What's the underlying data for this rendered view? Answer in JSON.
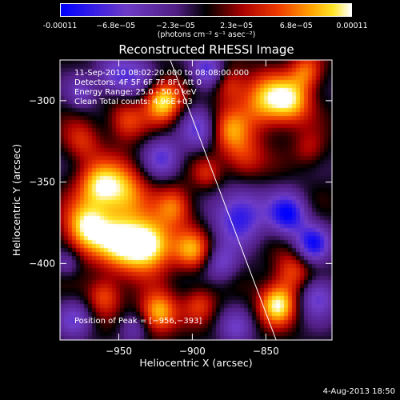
{
  "colorbar": {
    "ticks": [
      "-0.00011",
      "−6.8e−05",
      "−2.3e−05",
      "2.3e−05",
      "6.8e−05",
      "0.00011"
    ],
    "tick_values": [
      -0.00011,
      -6.8e-05,
      -2.3e-05,
      2.3e-05,
      6.8e-05,
      0.00011
    ],
    "range": [
      -0.00011,
      0.00011
    ],
    "units": "(photons cm⁻² s⁻¹ asec⁻²)"
  },
  "info": {
    "time": "11-Sep-2010 08:02:20.000 to 08:08:00.000",
    "detectors": "Detectors: 4F 5F 6F 7F 8F, Att 0",
    "energy": "Energy Range: 25.0 - 50.0 keV",
    "clean": "Clean     Total counts: 4.96E+03"
  },
  "peak": "Position of Peak = [−956,−393]",
  "footer": {
    "date": "4-Aug-2013 18:50"
  },
  "chart_data": {
    "type": "heatmap",
    "title": "Reconstructed RHESSI Image",
    "xlabel": "Heliocentric X (arcsec)",
    "ylabel": "Heliocentric Y (arcsec)",
    "xlim": [
      -990,
      -805
    ],
    "ylim": [
      -447,
      -275
    ],
    "xticks": [
      -950,
      -900,
      -850
    ],
    "yticks": [
      -300,
      -350,
      -400
    ],
    "colormap": "red-temperature (blue–purple–black–red–orange–yellow–white)",
    "limb_line": [
      [
        -915,
        -275
      ],
      [
        -843,
        -447
      ]
    ],
    "blobs": [
      {
        "x": -972,
        "y": -378,
        "amp": 1.0,
        "r": 11
      },
      {
        "x": -947,
        "y": -388,
        "amp": 0.95,
        "r": 13
      },
      {
        "x": -928,
        "y": -388,
        "amp": 0.95,
        "r": 11
      },
      {
        "x": -948,
        "y": -355,
        "amp": 0.8,
        "r": 12
      },
      {
        "x": -965,
        "y": -352,
        "amp": 0.7,
        "r": 10
      },
      {
        "x": -920,
        "y": -300,
        "amp": 1.0,
        "r": 9
      },
      {
        "x": -945,
        "y": -312,
        "amp": 0.55,
        "r": 9
      },
      {
        "x": -912,
        "y": -365,
        "amp": 0.65,
        "r": 9
      },
      {
        "x": -900,
        "y": -392,
        "amp": 0.7,
        "r": 9
      },
      {
        "x": -923,
        "y": -430,
        "amp": 0.9,
        "r": 9
      },
      {
        "x": -850,
        "y": -300,
        "amp": 0.8,
        "r": 12
      },
      {
        "x": -832,
        "y": -300,
        "amp": 0.75,
        "r": 10
      },
      {
        "x": -822,
        "y": -282,
        "amp": 0.6,
        "r": 8
      },
      {
        "x": -875,
        "y": -318,
        "amp": 0.6,
        "r": 10
      },
      {
        "x": -865,
        "y": -335,
        "amp": 0.5,
        "r": 10
      },
      {
        "x": -842,
        "y": -425,
        "amp": 1.0,
        "r": 9
      },
      {
        "x": -832,
        "y": -405,
        "amp": 0.55,
        "r": 9
      },
      {
        "x": -875,
        "y": -290,
        "amp": 0.5,
        "r": 8
      },
      {
        "x": -975,
        "y": -325,
        "amp": 0.45,
        "r": 9
      },
      {
        "x": -890,
        "y": -345,
        "amp": 0.4,
        "r": 7
      },
      {
        "x": -820,
        "y": -330,
        "amp": 0.35,
        "r": 8
      },
      {
        "x": -960,
        "y": -420,
        "amp": 0.55,
        "r": 8
      },
      {
        "x": -895,
        "y": -425,
        "amp": 0.45,
        "r": 8
      },
      {
        "x": -940,
        "y": -285,
        "amp": -0.5,
        "r": 10
      },
      {
        "x": -895,
        "y": -318,
        "amp": -0.55,
        "r": 9
      },
      {
        "x": -868,
        "y": -370,
        "amp": -0.8,
        "r": 12
      },
      {
        "x": -835,
        "y": -370,
        "amp": -0.9,
        "r": 9
      },
      {
        "x": -818,
        "y": -388,
        "amp": -0.8,
        "r": 8
      },
      {
        "x": -815,
        "y": -420,
        "amp": -0.6,
        "r": 9
      },
      {
        "x": -920,
        "y": -335,
        "amp": -0.55,
        "r": 9
      },
      {
        "x": -890,
        "y": -282,
        "amp": -0.7,
        "r": 8
      },
      {
        "x": -955,
        "y": -285,
        "amp": -0.45,
        "r": 8
      },
      {
        "x": -975,
        "y": -295,
        "amp": -0.4,
        "r": 7
      },
      {
        "x": -980,
        "y": -435,
        "amp": -0.45,
        "r": 8
      },
      {
        "x": -870,
        "y": -440,
        "amp": -0.4,
        "r": 8
      },
      {
        "x": -940,
        "y": -440,
        "amp": -0.35,
        "r": 7
      },
      {
        "x": -880,
        "y": -400,
        "amp": -0.5,
        "r": 8
      },
      {
        "x": -985,
        "y": -400,
        "amp": -0.35,
        "r": 6
      }
    ]
  }
}
